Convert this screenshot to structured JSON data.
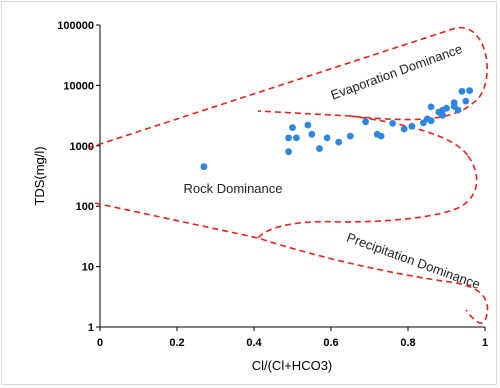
{
  "chart_data": {
    "type": "scatter",
    "xlabel": "Cl/(Cl+HCO3)",
    "ylabel": "TDS(mg/l)",
    "xlim": [
      0,
      1
    ],
    "ylim": [
      1,
      100000
    ],
    "y_scale": "log",
    "x_ticks": [
      "0",
      "0.2",
      "0.4",
      "0.6",
      "0.8",
      "1"
    ],
    "y_ticks": [
      "1",
      "10",
      "100",
      "1000",
      "10000",
      "100000"
    ],
    "grid": false,
    "point_color": "#2e86de",
    "boundary_color": "#e8221b",
    "series": [
      {
        "values": [
          [
            0.27,
            450
          ],
          [
            0.49,
            800
          ],
          [
            0.49,
            1350
          ],
          [
            0.5,
            2000
          ],
          [
            0.51,
            1350
          ],
          [
            0.54,
            2200
          ],
          [
            0.55,
            1550
          ],
          [
            0.57,
            900
          ],
          [
            0.59,
            1350
          ],
          [
            0.62,
            1150
          ],
          [
            0.65,
            1450
          ],
          [
            0.69,
            2500
          ],
          [
            0.72,
            1550
          ],
          [
            0.73,
            1450
          ],
          [
            0.76,
            2350
          ],
          [
            0.79,
            1900
          ],
          [
            0.81,
            2100
          ],
          [
            0.84,
            2400
          ],
          [
            0.85,
            2800
          ],
          [
            0.86,
            2600
          ],
          [
            0.86,
            4400
          ],
          [
            0.88,
            3600
          ],
          [
            0.89,
            3200
          ],
          [
            0.89,
            3900
          ],
          [
            0.9,
            4200
          ],
          [
            0.92,
            4500
          ],
          [
            0.92,
            5200
          ],
          [
            0.93,
            3900
          ],
          [
            0.94,
            8000
          ],
          [
            0.95,
            5500
          ],
          [
            0.96,
            8200
          ]
        ]
      }
    ],
    "annotations": [
      "Evaporation Dominance",
      "Rock Dominance",
      "Precipitation Dominance"
    ]
  }
}
